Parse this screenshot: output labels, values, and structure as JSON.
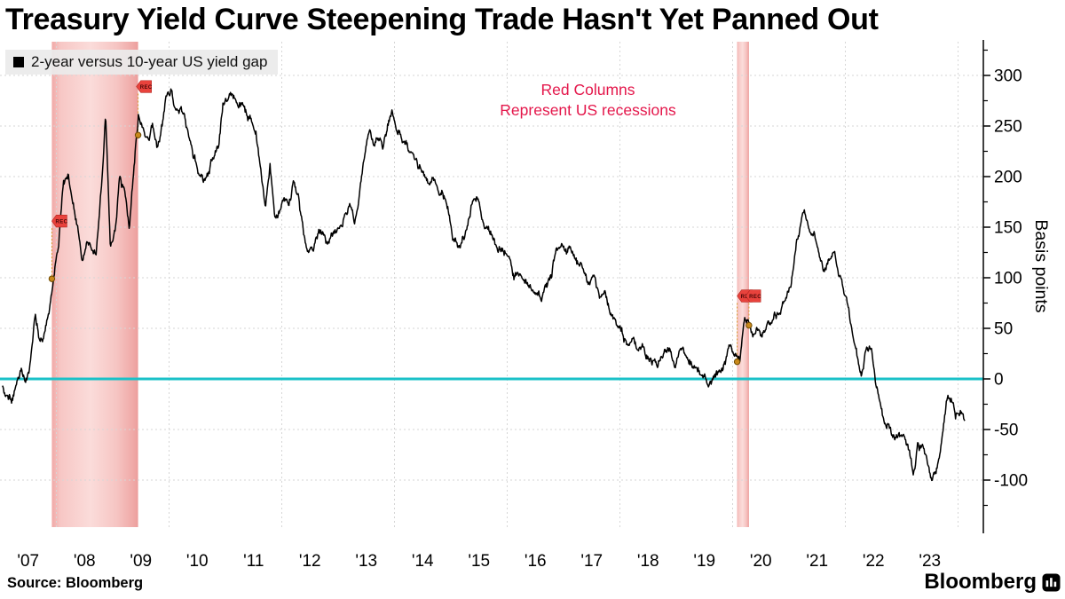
{
  "title": "Treasury Yield Curve Steepening Trade Hasn't Yet Panned Out",
  "legend": {
    "label": "2-year versus 10-year US yield gap",
    "swatch_color": "#000000"
  },
  "annotation": {
    "line1": "Red Columns",
    "line2": "Represent US recessions",
    "color": "#e4174b"
  },
  "source": "Source: Bloomberg",
  "brand": {
    "wordmark": "Bloomberg",
    "icon": "bloomberg-terminal-icon"
  },
  "colors": {
    "background": "#ffffff",
    "line": "#000000",
    "zero_line": "#1ac1c8",
    "grid": "#d6d6d6",
    "axis": "#000000",
    "recession_band_edge": "#efa8a6",
    "recession_band_mid": "#fbdcda",
    "rec_tag": "#e8423c",
    "rec_tag_border": "#b5261f",
    "rec_tag_text": "#4a0707",
    "boundary_dot": "#c9891b",
    "boundary_dot_border": "#6e4a00",
    "stem": "#d99a2b",
    "annotation_red": "#e4174b"
  },
  "chart_data": {
    "type": "line",
    "title": "Treasury Yield Curve Steepening Trade Hasn't Yet Panned Out",
    "ylabel": "Basis points",
    "xlabel": "",
    "x_tick_labels": [
      "'07",
      "'08",
      "'09",
      "'10",
      "'11",
      "'12",
      "'13",
      "'14",
      "'15",
      "'16",
      "'17",
      "'18",
      "'19",
      "'20",
      "'21",
      "'22",
      "'23"
    ],
    "y_ticks_bp": [
      300,
      250,
      200,
      150,
      100,
      50,
      0,
      -50,
      -100
    ],
    "y_minor_step_bp": 25,
    "ylim_bp": [
      -150,
      325
    ],
    "x_range_years": [
      2007.0,
      2024.35
    ],
    "grid": {
      "horizontal": "dashed-every-50bp",
      "vertical_every_years": 2
    },
    "zero_line_bp": 0,
    "legend_position": "top-left",
    "series": [
      {
        "name": "2-year versus 10-year US yield gap",
        "unit": "basis points",
        "frequency": "monthly",
        "start": "2007-01",
        "end": "2024-02",
        "values_bp": [
          -8,
          -14,
          -18,
          -6,
          3,
          -8,
          15,
          57,
          35,
          47,
          72,
          98,
          130,
          195,
          205,
          177,
          150,
          118,
          140,
          128,
          125,
          180,
          262,
          135,
          140,
          200,
          185,
          150,
          205,
          262,
          250,
          240,
          258,
          230,
          250,
          282,
          288,
          265,
          270,
          252,
          231,
          216,
          199,
          192,
          207,
          220,
          228,
          272,
          278,
          285,
          272,
          268,
          262,
          258,
          248,
          205,
          172,
          205,
          157,
          166,
          172,
          168,
          196,
          175,
          150,
          121,
          118,
          139,
          146,
          136,
          140,
          146,
          158,
          166,
          171,
          153,
          182,
          225,
          250,
          235,
          240,
          232,
          250,
          262,
          245,
          236,
          230,
          222,
          215,
          210,
          200,
          193,
          199,
          183,
          179,
          170,
          140,
          132,
          140,
          150,
          172,
          176,
          160,
          146,
          143,
          133,
          129,
          122,
          114,
          101,
          105,
          96,
          88,
          87,
          82,
          81,
          91,
          101,
          128,
          134,
          126,
          123,
          115,
          107,
          102,
          92,
          95,
          84,
          80,
          72,
          62,
          52,
          48,
          35,
          40,
          28,
          32,
          22,
          18,
          20,
          18,
          22,
          26,
          18,
          22,
          30,
          21,
          13,
          12,
          0,
          -2,
          -4,
          4,
          12,
          17,
          28,
          25,
          17,
          60,
          53,
          50,
          54,
          47,
          52,
          57,
          61,
          70,
          82,
          98,
          135,
          155,
          158,
          148,
          142,
          120,
          111,
          122,
          128,
          110,
          90,
          70,
          48,
          25,
          5,
          28,
          32,
          -10,
          -30,
          -40,
          -45,
          -60,
          -55,
          -58,
          -70,
          -95,
          -64,
          -70,
          -86,
          -100,
          -86,
          -68,
          -30,
          -18,
          -35,
          -32,
          -40
        ]
      }
    ],
    "recessions": [
      {
        "label": "REC",
        "start_year": 2007.92,
        "end_year": 2009.45
      },
      {
        "label": "REC",
        "start_year": 2020.08,
        "end_year": 2020.29
      }
    ],
    "rec_tags": [
      {
        "t": 2007.92,
        "value_bp": 156,
        "label": "REC"
      },
      {
        "t": 2009.42,
        "value_bp": 289,
        "label": "REC"
      },
      {
        "t": 2020.08,
        "value_bp": 82,
        "label": "REC"
      },
      {
        "t": 2020.23,
        "value_bp": 82,
        "label": "REC"
      }
    ],
    "recession_boundary_points_bp": [
      {
        "t": 2007.92,
        "value": 99
      },
      {
        "t": 2009.45,
        "value": 241
      },
      {
        "t": 2020.08,
        "value": 17
      },
      {
        "t": 2020.29,
        "value": 53
      }
    ]
  }
}
